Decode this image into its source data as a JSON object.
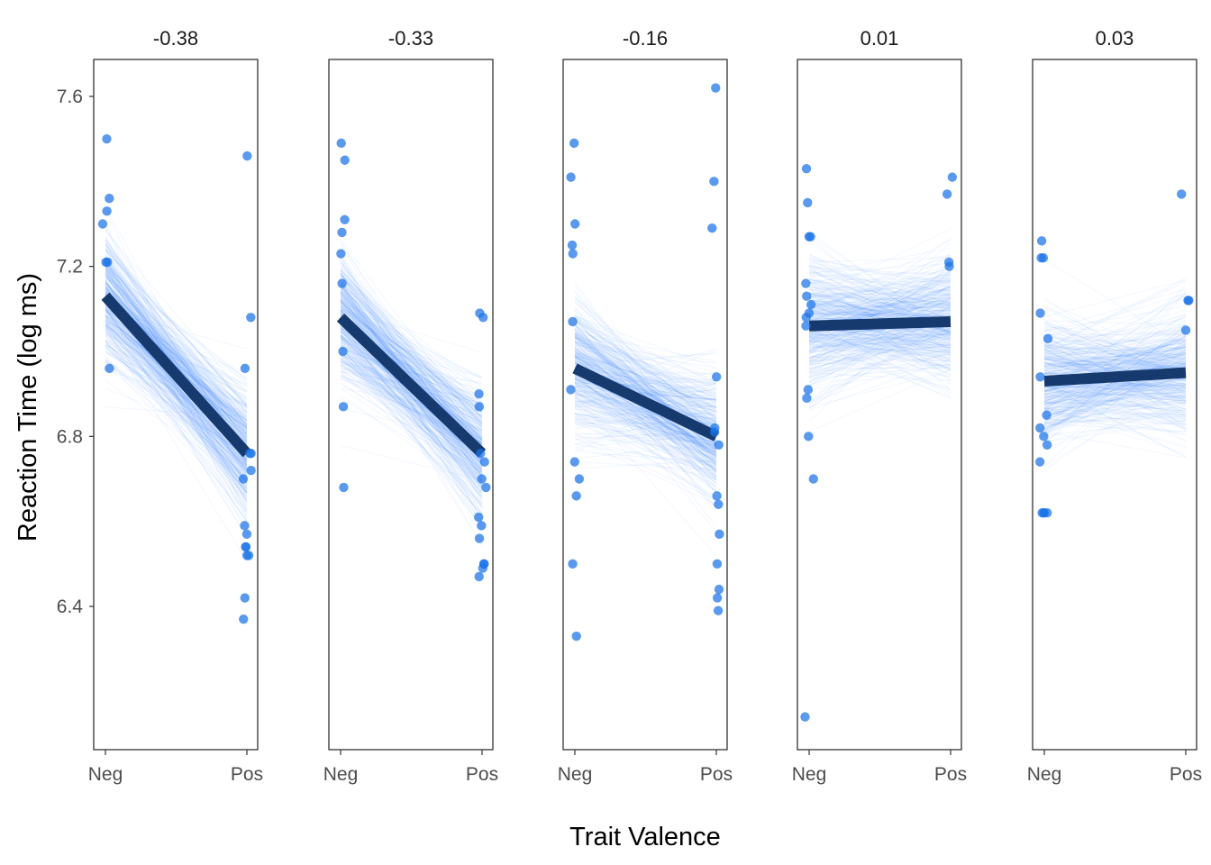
{
  "chart_data": {
    "type": "scatter",
    "facet_titles": [
      "-0.38",
      "-0.33",
      "-0.16",
      "0.01",
      "0.03"
    ],
    "xlabel": "Trait Valence",
    "ylabel": "Reaction Time (log ms)",
    "x_categories": [
      "Neg",
      "Pos"
    ],
    "y_ticks": [
      "6.4",
      "6.8",
      "7.2",
      "7.6"
    ],
    "ylim": [
      6.08,
      7.69
    ],
    "grid": false,
    "colors": {
      "points": "#1a73e8",
      "posterior_lines": "#1e78ff",
      "mean_line": "#173a6e",
      "panel_border": "#333333",
      "axis_text": "#4d4d4d"
    },
    "panels": [
      {
        "title": "-0.38",
        "mean_line": {
          "Neg": 7.13,
          "Pos": 6.76
        },
        "neg_points": [
          7.5,
          7.36,
          7.3,
          7.33,
          7.21,
          7.21,
          6.96
        ],
        "pos_points": [
          7.46,
          7.08,
          6.96,
          6.76,
          6.76,
          6.72,
          6.7,
          6.59,
          6.57,
          6.54,
          6.54,
          6.52,
          6.52,
          6.42,
          6.37
        ]
      },
      {
        "title": "-0.33",
        "mean_line": {
          "Neg": 7.08,
          "Pos": 6.76
        },
        "neg_points": [
          7.49,
          7.45,
          7.31,
          7.28,
          7.23,
          7.16,
          7.0,
          6.87,
          6.68
        ],
        "pos_points": [
          7.09,
          7.08,
          6.9,
          6.87,
          6.76,
          6.74,
          6.7,
          6.68,
          6.61,
          6.59,
          6.56,
          6.5,
          6.5,
          6.49,
          6.47
        ]
      },
      {
        "title": "-0.16",
        "mean_line": {
          "Neg": 6.96,
          "Pos": 6.8
        },
        "neg_points": [
          7.49,
          7.41,
          7.3,
          7.25,
          7.23,
          7.07,
          6.91,
          6.74,
          6.7,
          6.66,
          6.5,
          6.33
        ],
        "pos_points": [
          7.62,
          7.4,
          7.29,
          6.94,
          6.82,
          6.81,
          6.78,
          6.66,
          6.64,
          6.57,
          6.5,
          6.44,
          6.42,
          6.39
        ]
      },
      {
        "title": "0.01",
        "mean_line": {
          "Neg": 7.06,
          "Pos": 7.07
        },
        "neg_points": [
          7.43,
          7.35,
          7.27,
          7.27,
          7.16,
          7.13,
          7.11,
          7.09,
          7.08,
          7.06,
          6.91,
          6.89,
          6.8,
          6.7,
          6.14
        ],
        "pos_points": [
          7.41,
          7.37,
          7.21,
          7.2
        ]
      },
      {
        "title": "0.03",
        "mean_line": {
          "Neg": 6.93,
          "Pos": 6.95
        },
        "neg_points": [
          7.26,
          7.22,
          7.22,
          7.09,
          7.03,
          6.94,
          6.85,
          6.82,
          6.8,
          6.78,
          6.74,
          6.62,
          6.62,
          6.62,
          6.62
        ],
        "pos_points": [
          7.37,
          7.12,
          7.12,
          7.05
        ]
      }
    ]
  }
}
